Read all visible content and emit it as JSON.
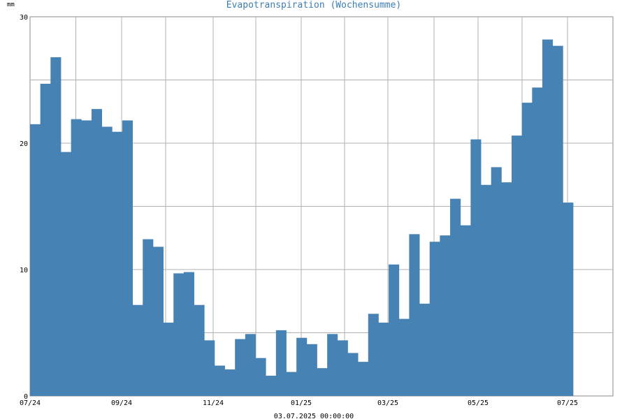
{
  "chart_data": {
    "type": "bar",
    "title": "Evapotranspiration (Wochensumme)",
    "unit": "mm",
    "timestamp": "03.07.2025 00:00:00",
    "ylim": [
      0,
      30
    ],
    "y_ticks": [
      "0",
      "10",
      "20",
      "30"
    ],
    "x_tick_labels": [
      "07/24",
      "09/24",
      "11/24",
      "01/25",
      "03/25",
      "05/25",
      "07/25"
    ],
    "grid": true,
    "bar_color": "#4682b4",
    "values": [
      21.5,
      24.7,
      26.8,
      19.3,
      21.9,
      21.8,
      22.7,
      21.3,
      20.9,
      21.8,
      7.2,
      12.4,
      11.8,
      5.8,
      9.7,
      9.8,
      7.2,
      4.4,
      2.4,
      2.1,
      4.5,
      4.9,
      3.0,
      1.6,
      5.2,
      1.9,
      4.6,
      4.1,
      2.2,
      4.9,
      4.4,
      3.4,
      2.7,
      6.5,
      5.8,
      10.4,
      6.1,
      12.8,
      7.3,
      12.2,
      12.7,
      15.6,
      13.5,
      20.3,
      16.7,
      18.1,
      16.9,
      20.6,
      23.2,
      24.4,
      28.2,
      27.7,
      15.3
    ]
  }
}
